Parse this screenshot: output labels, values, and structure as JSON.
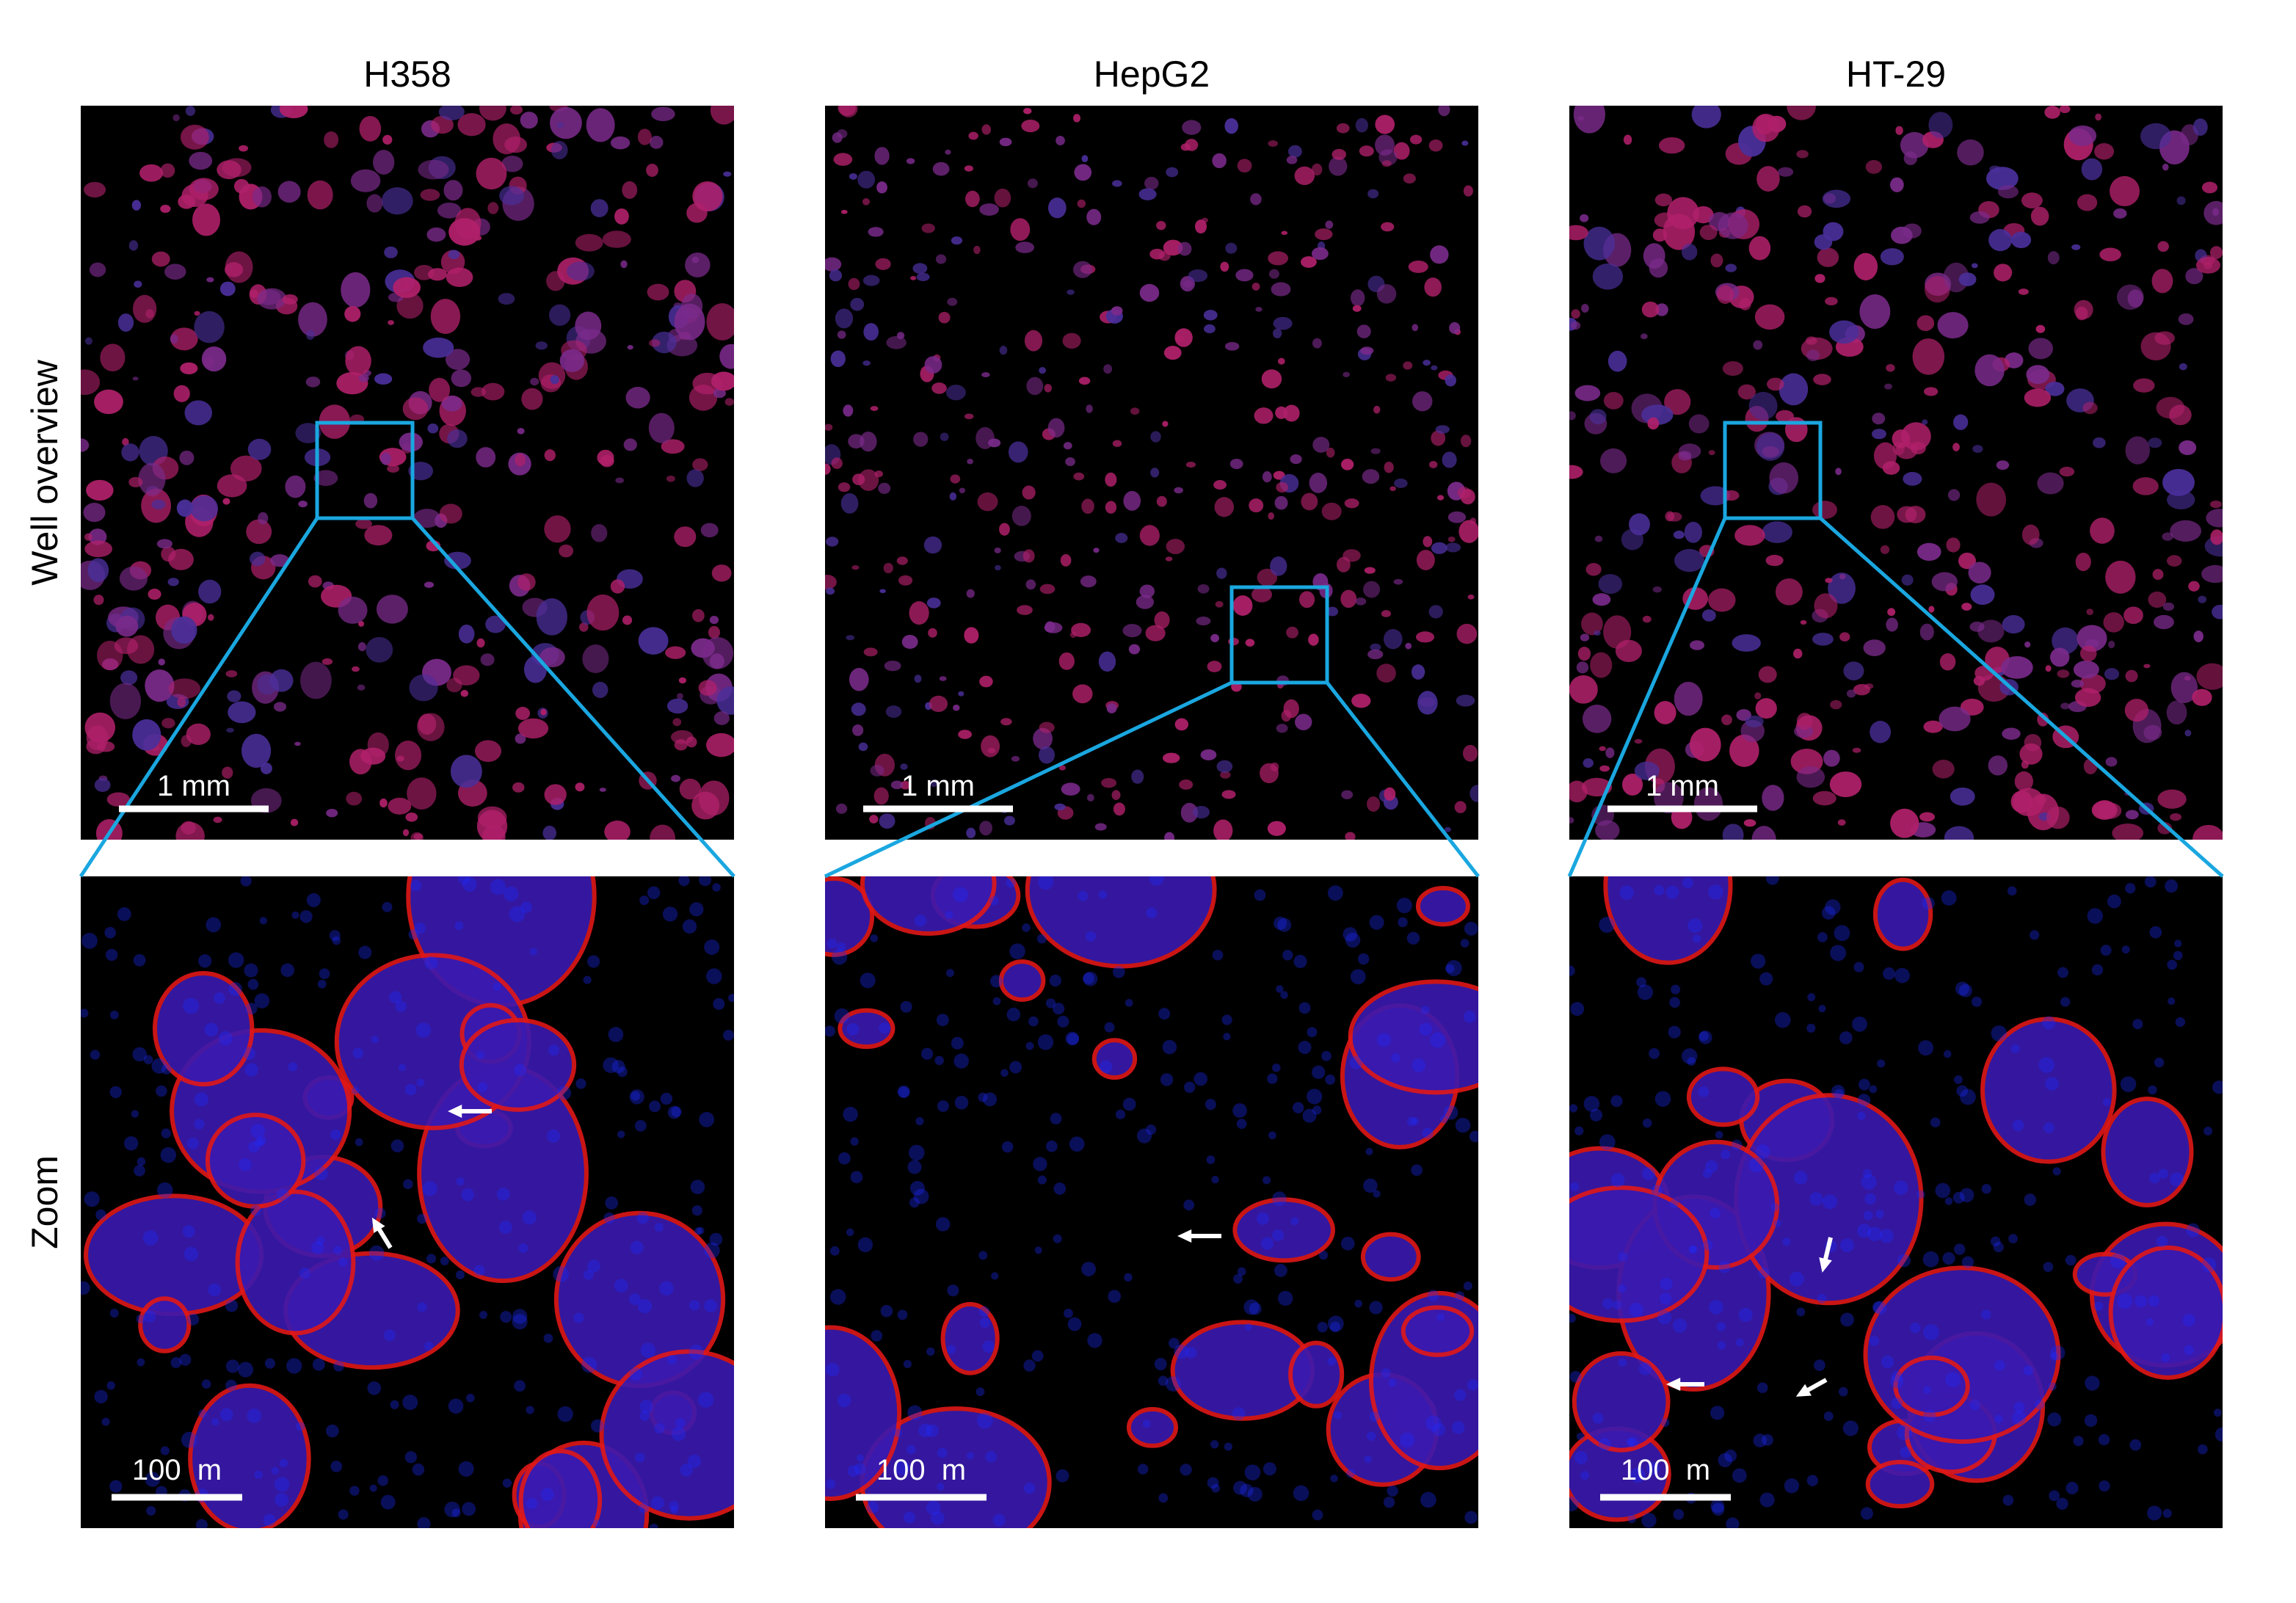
{
  "rows": [
    "Well overview",
    "Zoom"
  ],
  "columns": [
    {
      "title": "H358",
      "overview_scale": "1 mm",
      "zoom_scale": "100  m"
    },
    {
      "title": "HepG2",
      "overview_scale": "1 mm",
      "zoom_scale": "100  m"
    },
    {
      "title": "HT-29",
      "overview_scale": "1 mm",
      "zoom_scale": "100  m"
    }
  ]
}
